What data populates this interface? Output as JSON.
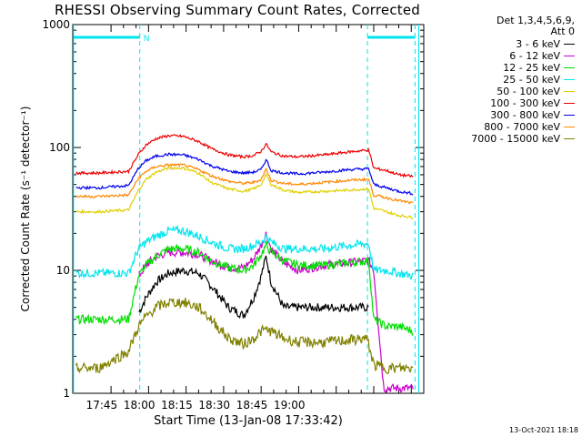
{
  "chart_data": {
    "type": "line",
    "title": "RHESSI Observing Summary Count Rates, Corrected",
    "xlabel": "Start Time (13-Jan-08 17:33:42)",
    "ylabel": "Corrected Count Rate (s⁻¹ detector⁻¹)",
    "yscale": "log",
    "ylim": [
      1,
      1000
    ],
    "ytick_labels": [
      "1",
      "10",
      "100",
      "1000"
    ],
    "xlim_minutes": [
      -0.3,
      140
    ],
    "xtick_labels": [
      "17:45",
      "18:00",
      "18:15",
      "18:30",
      "18:45",
      "19:00"
    ],
    "grid": false,
    "legend_placement": "outside-right",
    "legend_header": [
      "Det 1,3,4,5,6,9,",
      "Att 0"
    ],
    "intervals": {
      "solid_lines_min": [
        0,
        138
      ],
      "dashed_lines_min": [
        26.5,
        117.5,
        136.5
      ],
      "bars_min": [
        [
          0,
          26.5
        ],
        [
          117.5,
          136.5
        ]
      ],
      "bar_label": "N"
    },
    "series": [
      {
        "name": "3 - 6 keV",
        "color": "#000000",
        "x": [
          1,
          10,
          22,
          26,
          29,
          33,
          38,
          44,
          50,
          55,
          62,
          68,
          72,
          75,
          77,
          79,
          84,
          90,
          100,
          110,
          117,
          118,
          120
        ],
        "y": [
          null,
          null,
          null,
          4.5,
          6,
          8,
          9.5,
          10,
          9.5,
          7.5,
          5,
          4.3,
          6,
          9,
          13,
          8,
          5,
          5,
          5,
          5,
          5,
          5,
          null
        ]
      },
      {
        "name": "6 - 12 keV",
        "color": "#cc00cc",
        "x": [
          1,
          10,
          22,
          26,
          29,
          33,
          38,
          44,
          50,
          55,
          62,
          68,
          72,
          75,
          77,
          79,
          84,
          90,
          100,
          110,
          117,
          118,
          120,
          124,
          125,
          127,
          136
        ],
        "y": [
          null,
          null,
          null,
          9,
          11,
          13,
          14,
          14,
          13.5,
          12,
          10.5,
          10.5,
          12.5,
          16,
          20,
          15,
          11.5,
          10,
          11,
          11.5,
          12,
          12,
          10,
          1.1,
          1.1,
          1.1,
          1.1
        ]
      },
      {
        "name": "12 - 25 keV",
        "color": "#00dd00",
        "x": [
          1,
          10,
          22,
          26,
          29,
          33,
          38,
          44,
          50,
          55,
          62,
          68,
          72,
          75,
          77,
          79,
          84,
          90,
          100,
          110,
          117,
          118,
          120,
          125,
          130,
          136
        ],
        "y": [
          4,
          4,
          4,
          9,
          11,
          13,
          15,
          15,
          14,
          12,
          10.5,
          10,
          11,
          13.5,
          16,
          14,
          12,
          11,
          11,
          11.5,
          12,
          12,
          4,
          3.5,
          3.5,
          3.2
        ]
      },
      {
        "name": "25 - 50 keV",
        "color": "#00e5ee",
        "x": [
          1,
          10,
          22,
          26,
          29,
          33,
          38,
          44,
          50,
          55,
          62,
          68,
          72,
          75,
          77,
          79,
          84,
          90,
          100,
          110,
          117,
          118,
          120,
          125,
          130,
          136
        ],
        "y": [
          9.5,
          9.5,
          9.5,
          15,
          17,
          19,
          21,
          21,
          19,
          17,
          15,
          15,
          16,
          17,
          19,
          17,
          15,
          15,
          15,
          16,
          16.5,
          16.5,
          10,
          10,
          9.5,
          9
        ]
      },
      {
        "name": "50 - 100 keV",
        "color": "#e0d000",
        "x": [
          1,
          10,
          22,
          26,
          29,
          33,
          38,
          44,
          50,
          55,
          62,
          68,
          72,
          75,
          77,
          79,
          84,
          90,
          100,
          110,
          117,
          118,
          120,
          125,
          130,
          136
        ],
        "y": [
          30,
          30,
          31,
          45,
          55,
          63,
          68,
          68,
          62,
          52,
          46,
          44,
          46,
          50,
          60,
          50,
          45,
          43,
          44,
          45,
          46,
          46,
          32,
          30,
          28,
          27
        ]
      },
      {
        "name": "100 - 300 keV",
        "color": "#ee0000",
        "x": [
          1,
          10,
          22,
          26,
          29,
          33,
          38,
          44,
          50,
          55,
          62,
          68,
          72,
          75,
          77,
          79,
          84,
          90,
          100,
          110,
          117,
          118,
          120,
          125,
          130,
          136
        ],
        "y": [
          62,
          62,
          64,
          88,
          105,
          118,
          125,
          123,
          112,
          98,
          87,
          84,
          86,
          93,
          107,
          92,
          85,
          84,
          87,
          92,
          95,
          95,
          68,
          65,
          60,
          58
        ]
      },
      {
        "name": "300 - 800 keV",
        "color": "#0000ee",
        "x": [
          1,
          10,
          22,
          26,
          29,
          33,
          38,
          44,
          50,
          55,
          62,
          68,
          72,
          75,
          77,
          79,
          84,
          90,
          100,
          110,
          117,
          118,
          120,
          125,
          130,
          136
        ],
        "y": [
          47,
          47,
          49,
          68,
          78,
          85,
          88,
          87,
          80,
          71,
          64,
          62,
          63,
          66,
          80,
          65,
          62,
          61,
          63,
          66,
          67,
          67,
          50,
          47,
          44,
          42
        ]
      },
      {
        "name": "800 - 7000 keV",
        "color": "#ff8800",
        "x": [
          1,
          10,
          22,
          26,
          29,
          33,
          38,
          44,
          50,
          55,
          62,
          68,
          72,
          75,
          77,
          79,
          84,
          90,
          100,
          110,
          117,
          118,
          120,
          125,
          130,
          136
        ],
        "y": [
          40,
          40,
          41,
          56,
          64,
          70,
          72,
          72,
          66,
          59,
          53,
          51,
          52,
          55,
          67,
          54,
          51,
          50,
          52,
          54,
          55,
          55,
          41,
          39,
          37,
          35
        ]
      },
      {
        "name": "7000 - 15000 keV",
        "color": "#808000",
        "x": [
          1,
          10,
          22,
          26,
          29,
          33,
          38,
          44,
          50,
          55,
          62,
          68,
          72,
          75,
          77,
          79,
          84,
          90,
          100,
          110,
          117,
          118,
          120,
          125,
          130,
          136
        ],
        "y": [
          1.6,
          1.6,
          2.2,
          3.5,
          4.2,
          5,
          5.5,
          5.5,
          5,
          4,
          2.8,
          2.5,
          2.8,
          3.2,
          3.3,
          3.2,
          2.8,
          2.6,
          2.6,
          2.7,
          2.8,
          2.5,
          1.7,
          1.6,
          1.6,
          1.6
        ]
      }
    ]
  },
  "footer": {
    "timestamp": "13-Oct-2021 18:18"
  }
}
